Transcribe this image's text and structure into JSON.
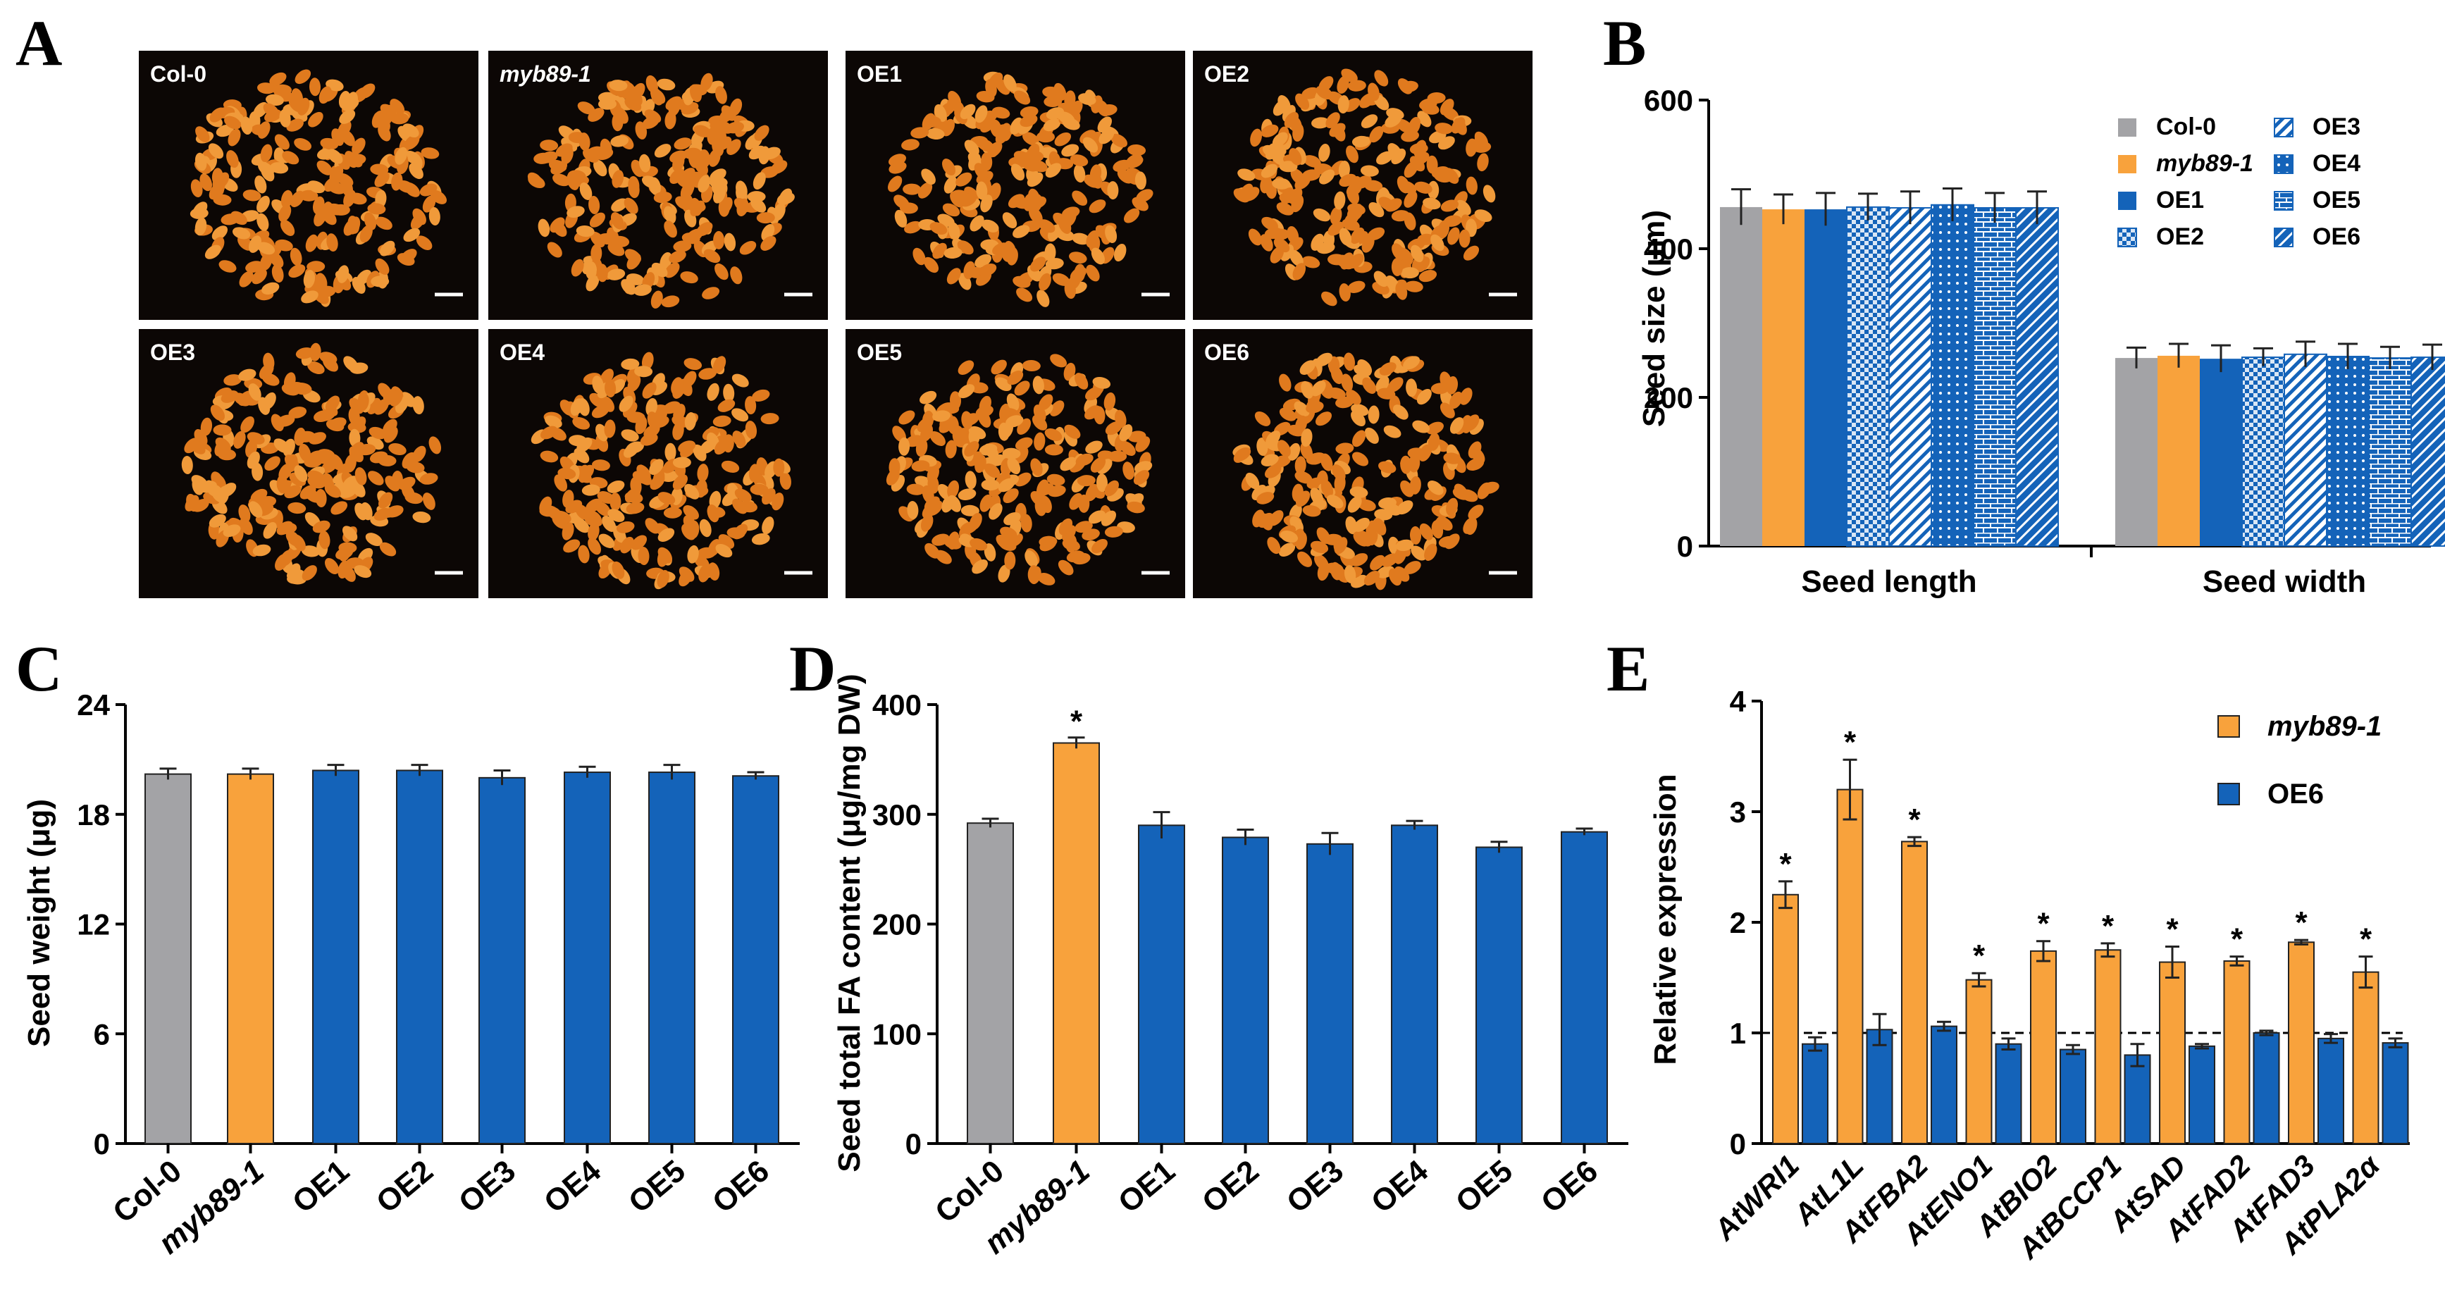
{
  "panel_letters": [
    "A",
    "B",
    "C",
    "D",
    "E"
  ],
  "colors": {
    "col0": "#a3a3a6",
    "myb": "#f8a23c",
    "oe": "#1463b9",
    "seed": "#e07a1e",
    "photo_bg": "#0c0705"
  },
  "photos": {
    "labels": [
      "Col-0",
      "myb89-1",
      "OE1",
      "OE2",
      "OE3",
      "OE4",
      "OE5",
      "OE6"
    ],
    "italic": [
      false,
      true,
      false,
      false,
      false,
      false,
      false,
      false
    ]
  },
  "chart_data": [
    {
      "panel": "B",
      "type": "bar",
      "categories": [
        "Seed length",
        "Seed width"
      ],
      "series": [
        {
          "name": "Col-0",
          "values": [
            456,
            253
          ],
          "errors": [
            24,
            14
          ],
          "color": "#a3a3a6",
          "pattern": "solid"
        },
        {
          "name": "myb89-1",
          "values": [
            453,
            256
          ],
          "errors": [
            20,
            16
          ],
          "color": "#f8a23c",
          "pattern": "solid"
        },
        {
          "name": "OE1",
          "values": [
            453,
            252
          ],
          "errors": [
            22,
            18
          ],
          "color": "#1463b9",
          "pattern": "solid"
        },
        {
          "name": "OE2",
          "values": [
            456,
            254
          ],
          "errors": [
            18,
            12
          ],
          "color": "#1463b9",
          "pattern": "checker"
        },
        {
          "name": "OE3",
          "values": [
            455,
            258
          ],
          "errors": [
            22,
            17
          ],
          "color": "#1463b9",
          "pattern": "diag"
        },
        {
          "name": "OE4",
          "values": [
            459,
            255
          ],
          "errors": [
            22,
            17
          ],
          "color": "#1463b9",
          "pattern": "dots"
        },
        {
          "name": "OE5",
          "values": [
            455,
            253
          ],
          "errors": [
            20,
            15
          ],
          "color": "#1463b9",
          "pattern": "brick"
        },
        {
          "name": "OE6",
          "values": [
            455,
            254
          ],
          "errors": [
            22,
            17
          ],
          "color": "#1463b9",
          "pattern": "diag2"
        }
      ],
      "legend_order": [
        "Col-0",
        "myb89-1",
        "OE1",
        "OE2",
        "OE3",
        "OE4",
        "OE5",
        "OE6"
      ],
      "xlabel": "",
      "ylabel": "Seed size (μm)",
      "ylim": [
        0,
        600
      ],
      "yticks": [
        "0",
        "200",
        "400",
        "600"
      ],
      "legend": "top-right"
    },
    {
      "panel": "C",
      "type": "bar",
      "categories": [
        "Col-0",
        "myb89-1",
        "OE1",
        "OE2",
        "OE3",
        "OE4",
        "OE5",
        "OE6"
      ],
      "values": [
        20.2,
        20.2,
        20.4,
        20.4,
        20.0,
        20.3,
        20.3,
        20.1
      ],
      "errors": [
        0.3,
        0.3,
        0.3,
        0.3,
        0.4,
        0.3,
        0.4,
        0.2
      ],
      "xlabel": "",
      "ylabel": "Seed weight (μg)",
      "ylim": [
        0,
        24
      ],
      "yticks": [
        "0",
        "6",
        "12",
        "18",
        "24"
      ]
    },
    {
      "panel": "D",
      "type": "bar",
      "categories": [
        "Col-0",
        "myb89-1",
        "OE1",
        "OE2",
        "OE3",
        "OE4",
        "OE5",
        "OE6"
      ],
      "values": [
        292,
        365,
        290,
        279,
        273,
        290,
        270,
        284
      ],
      "errors": [
        4,
        5,
        12,
        7,
        10,
        4,
        5,
        3
      ],
      "significant": [
        false,
        true,
        false,
        false,
        false,
        false,
        false,
        false
      ],
      "significance_mark": "*",
      "xlabel": "",
      "ylabel": "Seed total FA content (μg/mg DW)",
      "ylim": [
        0,
        400
      ],
      "yticks": [
        "0",
        "100",
        "200",
        "300",
        "400"
      ]
    },
    {
      "panel": "E",
      "type": "bar",
      "categories": [
        "AtWRI1",
        "AtL1L",
        "AtFBA2",
        "AtENO1",
        "AtBIO2",
        "AtBCCP1",
        "AtSAD",
        "AtFAD2",
        "AtFAD3",
        "AtPLA2α"
      ],
      "series": [
        {
          "name": "myb89-1",
          "values": [
            2.25,
            3.2,
            2.73,
            1.48,
            1.74,
            1.75,
            1.64,
            1.65,
            1.82,
            1.55
          ],
          "errors": [
            0.12,
            0.27,
            0.04,
            0.06,
            0.09,
            0.06,
            0.14,
            0.04,
            0.02,
            0.14
          ],
          "color": "#f8a23c"
        },
        {
          "name": "OE6",
          "values": [
            0.9,
            1.03,
            1.06,
            0.9,
            0.85,
            0.8,
            0.88,
            1.0,
            0.95,
            0.91
          ],
          "errors": [
            0.06,
            0.14,
            0.04,
            0.05,
            0.04,
            0.1,
            0.02,
            0.02,
            0.04,
            0.04
          ],
          "color": "#1463b9"
        }
      ],
      "significant": [
        true,
        true,
        true,
        true,
        true,
        true,
        true,
        true,
        true,
        true
      ],
      "significance_mark": "*",
      "reference_line": 1,
      "xlabel": "",
      "ylabel": "Relative expression",
      "ylim": [
        0,
        4
      ],
      "yticks": [
        "0",
        "1",
        "2",
        "3",
        "4"
      ],
      "legend": "top-right"
    }
  ]
}
